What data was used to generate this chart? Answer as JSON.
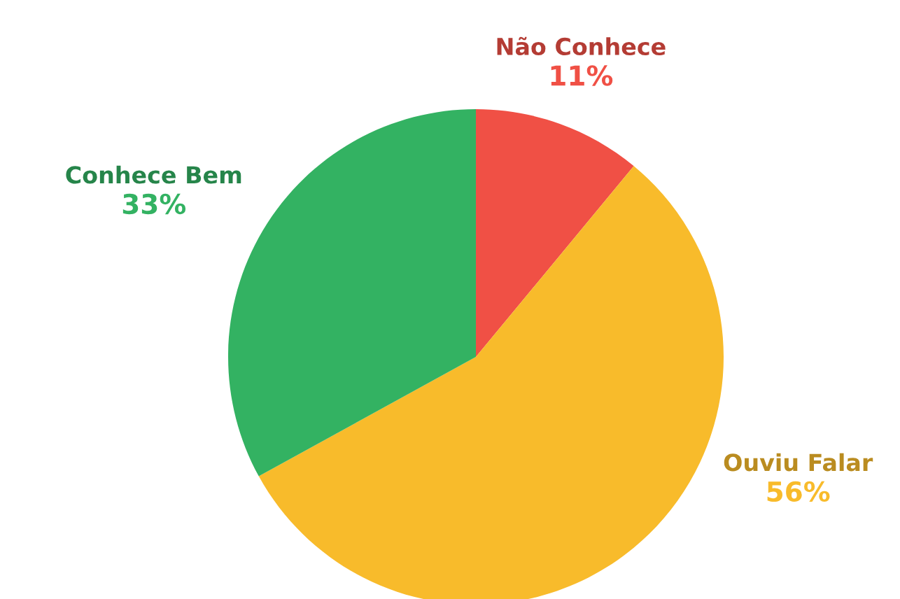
{
  "chart_data": {
    "type": "pie",
    "categories": [
      "Não Conhece",
      "Ouviu Falar",
      "Conhece Bem"
    ],
    "values": [
      11,
      56,
      33
    ],
    "colors": [
      "#f05045",
      "#f8bb2b",
      "#33b262"
    ],
    "value_labels": [
      "11%",
      "56%",
      "33%"
    ]
  }
}
